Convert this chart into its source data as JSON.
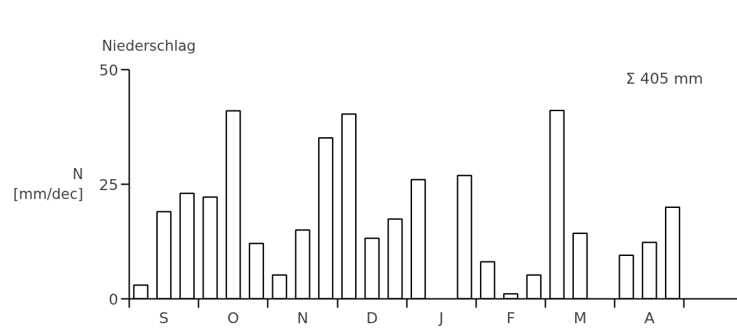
{
  "chart_data": {
    "type": "bar",
    "title": "Niederschlag",
    "ylabel": "N [mm/dec]",
    "categories": [
      null,
      "S",
      null,
      null,
      "O",
      null,
      null,
      "N",
      null,
      null,
      "D",
      null,
      null,
      "J",
      null,
      null,
      "F",
      null,
      null,
      "M",
      null,
      null,
      "A",
      null
    ],
    "values": [
      3,
      19,
      23,
      22.2,
      41,
      12.1,
      5.2,
      15,
      35.1,
      40.3,
      13.2,
      17.4,
      26,
      null,
      26.9,
      8.1,
      1.1,
      5.2,
      41.1,
      14.3,
      null,
      9.5,
      12.3,
      20
    ],
    "color": "#ffffff",
    "ylim": [
      0,
      50
    ],
    "yticks": [
      0,
      25,
      50
    ],
    "grid": false,
    "annotations": [
      "Σ 405 mm"
    ]
  }
}
